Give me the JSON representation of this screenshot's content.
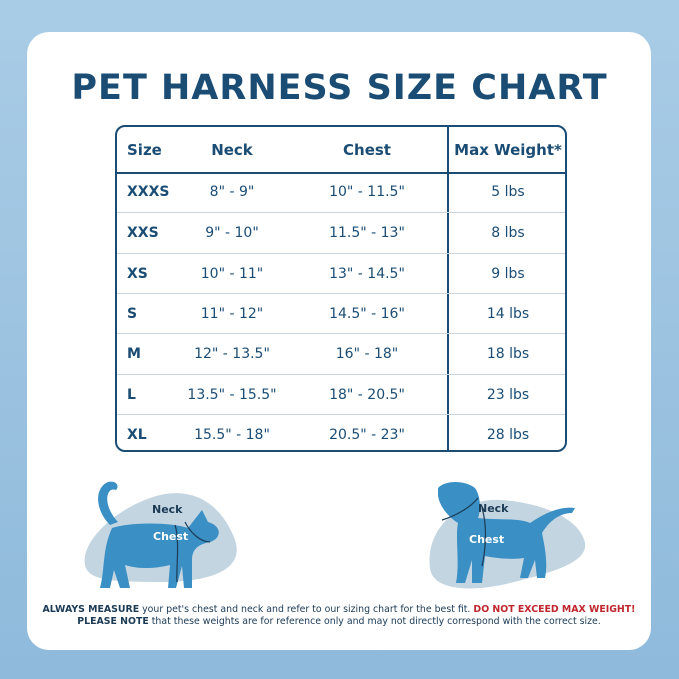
{
  "title": "PET HARNESS SIZE CHART",
  "table": {
    "headers": [
      "Size",
      "Neck",
      "Chest",
      "Max Weight*"
    ],
    "rows": [
      [
        "XXXS",
        "8\" - 9\"",
        "10\" - 11.5\"",
        "5 lbs"
      ],
      [
        "XXS",
        "9\" - 10\"",
        "11.5\" - 13\"",
        "8 lbs"
      ],
      [
        "XS",
        "10\" - 11\"",
        "13\" - 14.5\"",
        "9 lbs"
      ],
      [
        "S",
        "11\" - 12\"",
        "14.5\" - 16\"",
        "14 lbs"
      ],
      [
        "M",
        "12\" - 13.5\"",
        "16\" - 18\"",
        "18 lbs"
      ],
      [
        "L",
        "13.5\" - 15.5\"",
        "18\" - 20.5\"",
        "23 lbs"
      ],
      [
        "XL",
        "15.5\" - 18\"",
        "20.5\" - 23\"",
        "28 lbs"
      ]
    ]
  },
  "illustrations": {
    "cat": {
      "neck_label": "Neck",
      "chest_label": "Chest",
      "icon": "cat-silhouette-icon"
    },
    "dog": {
      "neck_label": "Neck",
      "chest_label": "Chest",
      "icon": "dog-silhouette-icon"
    }
  },
  "note": {
    "line1_bold": "ALWAYS MEASURE",
    "line1_text": " your pet's chest and neck and refer  to our sizing chart for the best fit. ",
    "line1_warning": "DO NOT EXCEED MAX WEIGHT!",
    "line2_bold": "PLEASE NOTE",
    "line2_text": " that these weights are for reference only and may not directly correspond with the correct size."
  },
  "colors": {
    "navy": "#1b4d74",
    "pet_blue": "#3a8fc4",
    "blob": "#c3d5e1",
    "warning": "#c0262d",
    "background": "#a9cce6"
  }
}
